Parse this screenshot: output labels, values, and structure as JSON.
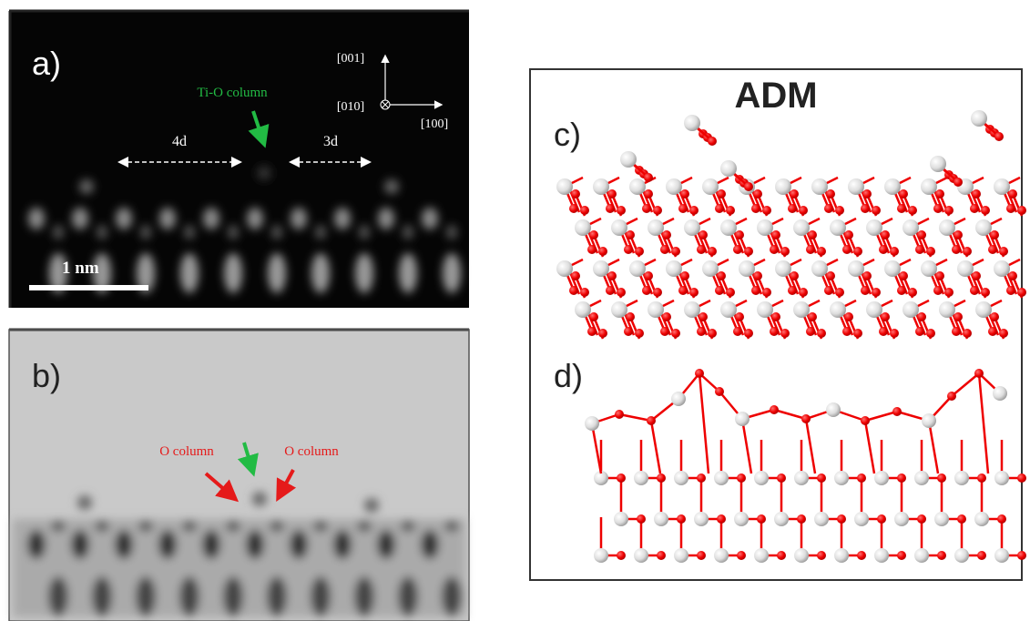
{
  "panel_a": {
    "label": "a)",
    "axis_up": "[001]",
    "axis_out": "[010]",
    "axis_right": "[100]",
    "annotation": "Ti-O column",
    "spacing_left": "4d",
    "spacing_right": "3d",
    "scale_bar": "1 nm"
  },
  "panel_b": {
    "label": "b)",
    "annotation_left": "O column",
    "annotation_right": "O column"
  },
  "panel_cd": {
    "title": "ADM",
    "label_c": "c)",
    "label_d": "d)"
  }
}
